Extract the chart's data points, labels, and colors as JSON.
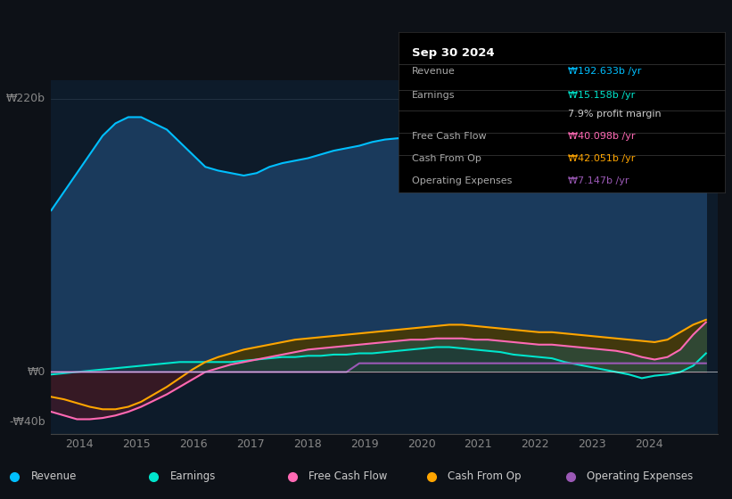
{
  "background_color": "#0d1117",
  "plot_bg_color": "#0d1b2a",
  "info_box_bg": "#000000",
  "info_box_title": "Sep 30 2024",
  "info_box_rows": [
    {
      "label": "Revenue",
      "value": "₩192.633b /yr",
      "value_color": "#00bfff"
    },
    {
      "label": "Earnings",
      "value": "₩15.158b /yr",
      "value_color": "#00e5cc"
    },
    {
      "label": "",
      "value": "7.9% profit margin",
      "value_color": "#cccccc"
    },
    {
      "label": "Free Cash Flow",
      "value": "₩40.098b /yr",
      "value_color": "#ff69b4"
    },
    {
      "label": "Cash From Op",
      "value": "₩42.051b /yr",
      "value_color": "#ffa500"
    },
    {
      "label": "Operating Expenses",
      "value": "₩7.147b /yr",
      "value_color": "#9b59b6"
    }
  ],
  "legend_items": [
    {
      "label": "Revenue",
      "color": "#00bfff"
    },
    {
      "label": "Earnings",
      "color": "#00e5cc"
    },
    {
      "label": "Free Cash Flow",
      "color": "#ff69b4"
    },
    {
      "label": "Cash From Op",
      "color": "#ffa500"
    },
    {
      "label": "Operating Expenses",
      "color": "#9b59b6"
    }
  ],
  "ylim": [
    -50,
    235
  ],
  "xlim": [
    2013.5,
    2025.2
  ],
  "xticks": [
    2014,
    2015,
    2016,
    2017,
    2018,
    2019,
    2020,
    2021,
    2022,
    2023,
    2024
  ],
  "ylabel_top": "₩220b",
  "ylabel_zero": "₩0",
  "ylabel_neg": "-₩40b",
  "ylabel_top_val": 220,
  "ylabel_zero_val": 0,
  "ylabel_neg_val": -40
}
